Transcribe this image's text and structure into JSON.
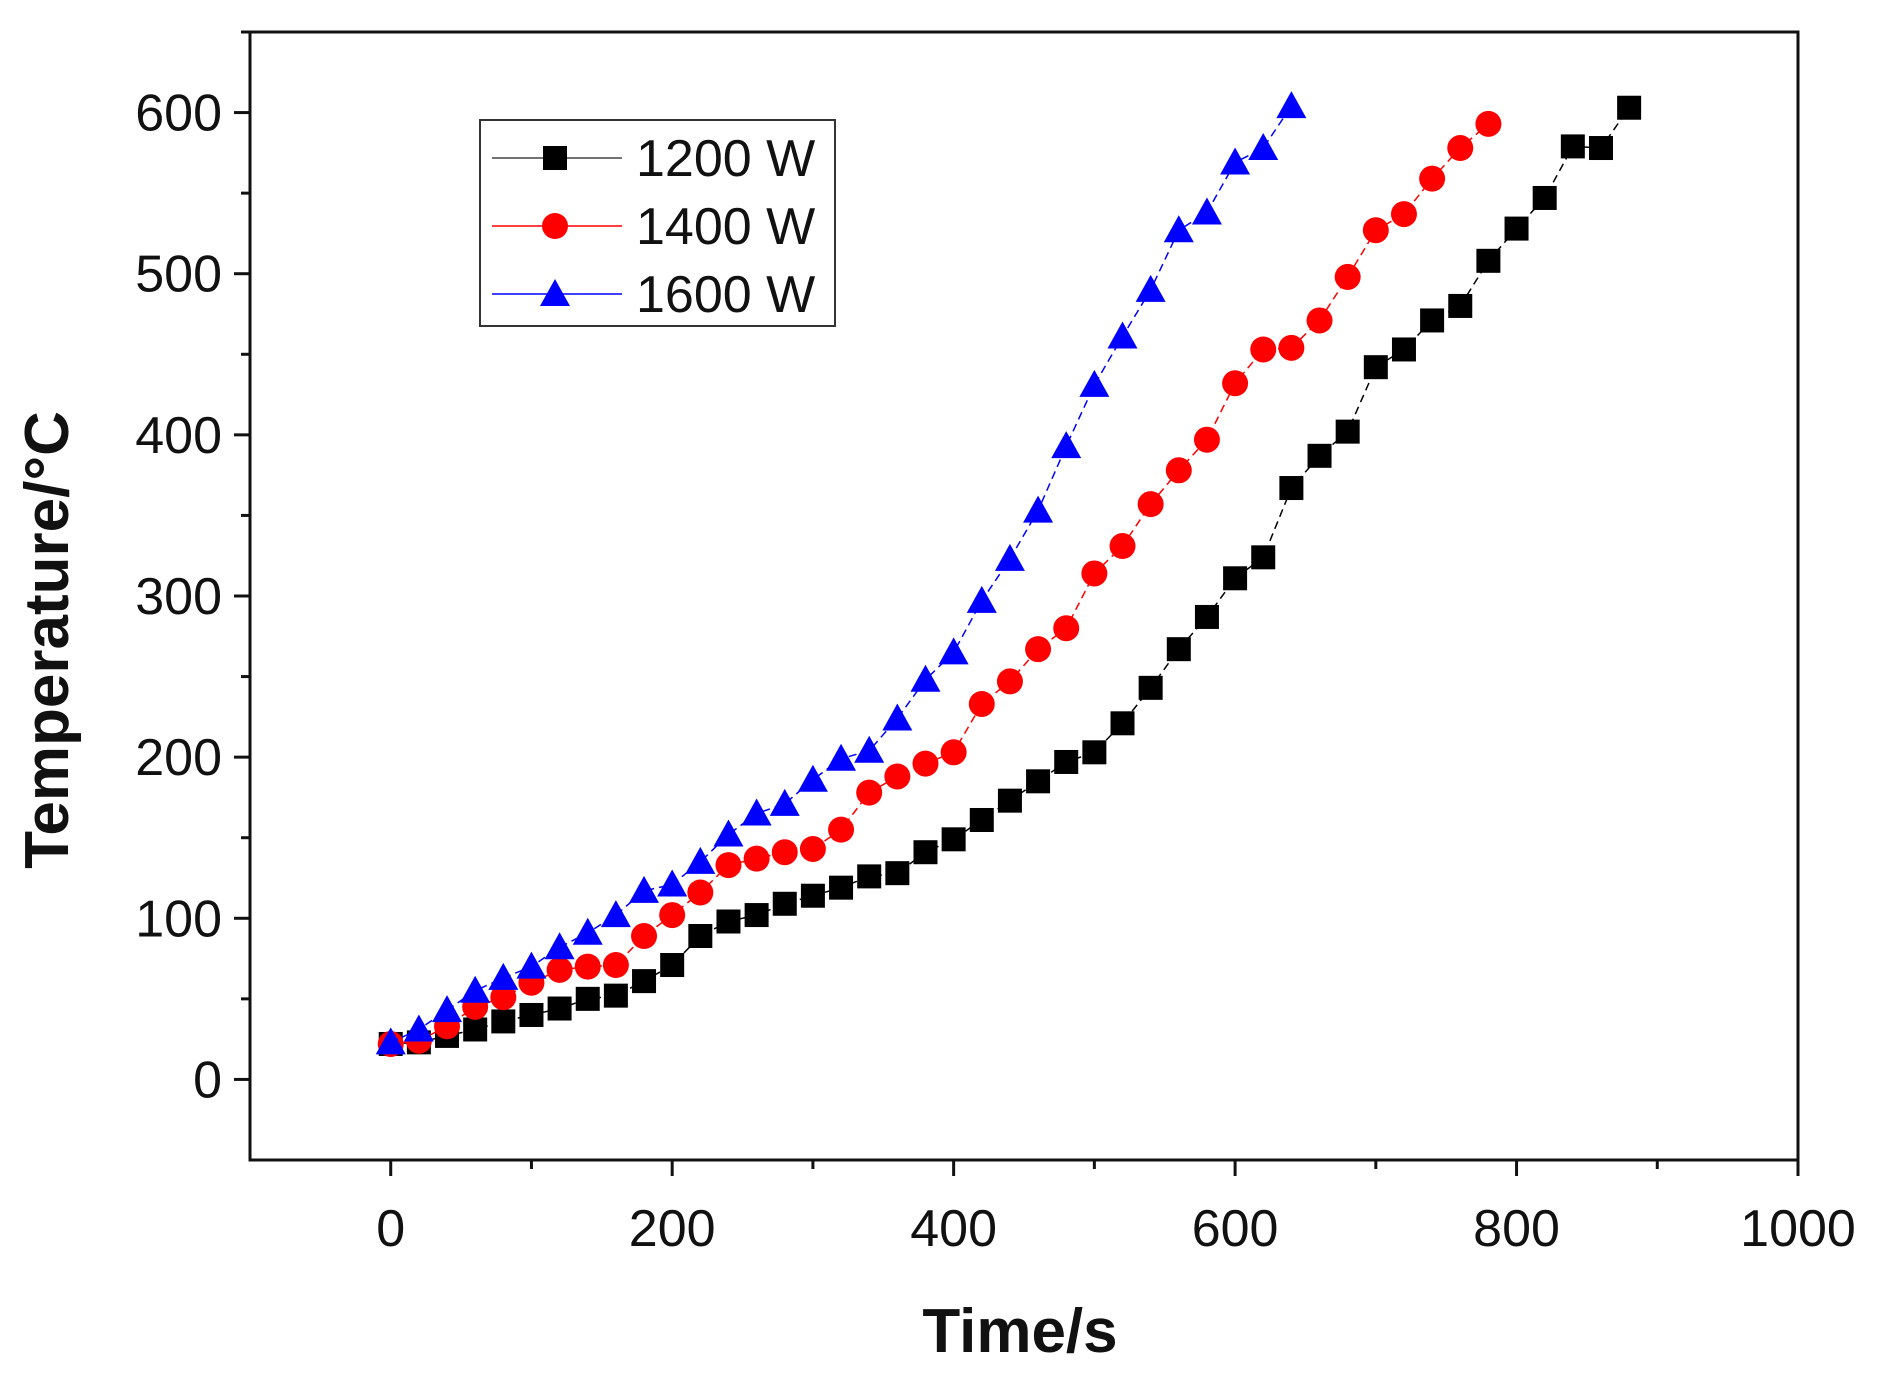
{
  "chart_data": {
    "type": "scatter",
    "title": "",
    "xlabel": "Time/s",
    "ylabel": "Temperature/°C",
    "xlim": [
      -100,
      1000
    ],
    "ylim": [
      -50,
      650
    ],
    "xticks": [
      0,
      200,
      400,
      600,
      800,
      1000
    ],
    "yticks": [
      0,
      100,
      200,
      300,
      400,
      500,
      600
    ],
    "xtick_labels": [
      "0",
      "200",
      "400",
      "600",
      "800",
      "1000"
    ],
    "ytick_labels": [
      "0",
      "100",
      "200",
      "300",
      "400",
      "500",
      "600"
    ],
    "grid": false,
    "legend_position": "top-left",
    "series": [
      {
        "name": "1200 W",
        "color": "#000000",
        "marker": "square",
        "x": [
          0,
          20,
          40,
          60,
          80,
          100,
          120,
          140,
          160,
          180,
          200,
          220,
          240,
          260,
          280,
          300,
          320,
          340,
          360,
          380,
          400,
          420,
          440,
          460,
          480,
          500,
          520,
          540,
          560,
          580,
          600,
          620,
          640,
          660,
          680,
          700,
          720,
          740,
          760,
          780,
          800,
          820,
          840,
          860,
          880
        ],
        "values": [
          22,
          23,
          27,
          31,
          36,
          40,
          44,
          50,
          52,
          61,
          71,
          89,
          98,
          102,
          109,
          114,
          119,
          126,
          128,
          141,
          149,
          161,
          173,
          185,
          197,
          203,
          221,
          243,
          267,
          287,
          311,
          324,
          367,
          387,
          402,
          442,
          453,
          471,
          480,
          508,
          528,
          547,
          579,
          578,
          603
        ]
      },
      {
        "name": "1400 W",
        "color": "#ff0000",
        "marker": "circle",
        "x": [
          0,
          20,
          40,
          60,
          80,
          100,
          120,
          140,
          160,
          180,
          200,
          220,
          240,
          260,
          280,
          300,
          320,
          340,
          360,
          380,
          400,
          420,
          440,
          460,
          480,
          500,
          520,
          540,
          560,
          580,
          600,
          620,
          640,
          660,
          680,
          700,
          720,
          740,
          760,
          780
        ],
        "values": [
          22,
          24,
          33,
          45,
          51,
          60,
          68,
          70,
          71,
          89,
          102,
          116,
          133,
          137,
          141,
          143,
          155,
          178,
          188,
          196,
          203,
          233,
          247,
          267,
          280,
          314,
          331,
          357,
          378,
          397,
          432,
          453,
          454,
          471,
          498,
          527,
          537,
          559,
          578,
          593
        ]
      },
      {
        "name": "1600 W",
        "color": "#0000ff",
        "marker": "triangle",
        "x": [
          0,
          20,
          40,
          60,
          80,
          100,
          120,
          140,
          160,
          180,
          200,
          220,
          240,
          260,
          280,
          300,
          320,
          340,
          360,
          380,
          400,
          420,
          440,
          460,
          480,
          500,
          520,
          540,
          560,
          580,
          600,
          620,
          640
        ],
        "values": [
          23,
          31,
          43,
          55,
          63,
          70,
          82,
          91,
          102,
          117,
          121,
          135,
          152,
          165,
          171,
          186,
          199,
          204,
          224,
          248,
          265,
          297,
          323,
          353,
          393,
          431,
          461,
          490,
          527,
          538,
          569,
          578,
          604
        ]
      }
    ]
  }
}
